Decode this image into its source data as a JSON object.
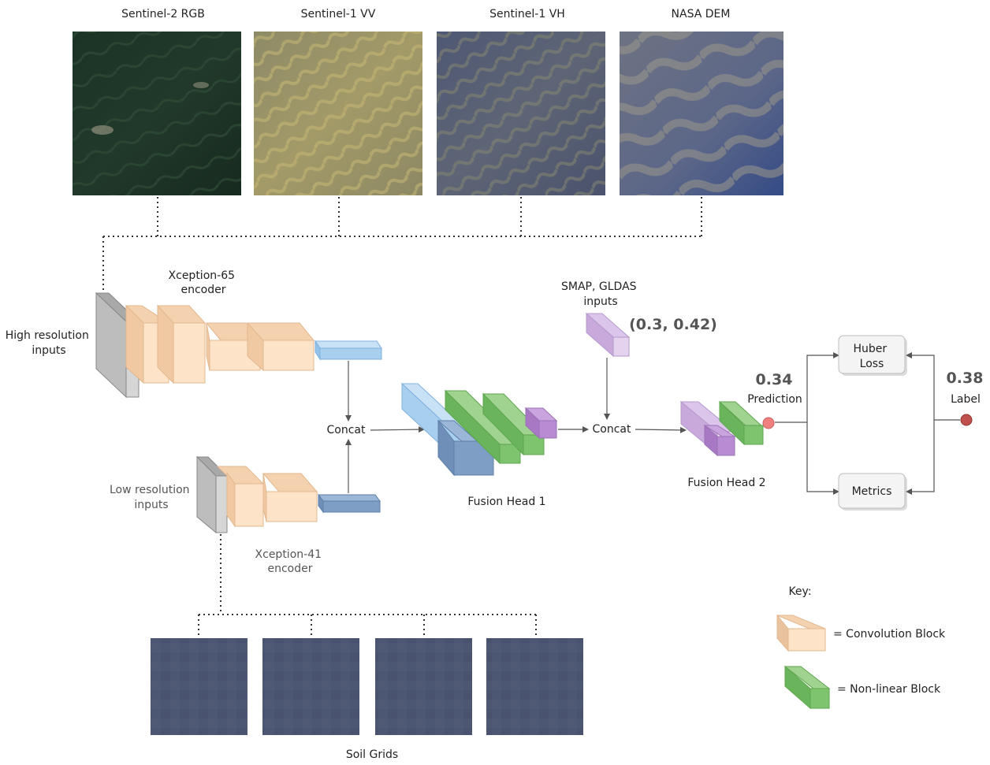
{
  "images": {
    "sentinel2_rgb": "Sentinel-2 RGB",
    "sentinel1_vv": "Sentinel-1 VV",
    "sentinel1_vh": "Sentinel-1 VH",
    "nasa_dem": "NASA DEM",
    "soil_grids": "Soil Grids"
  },
  "encoders": {
    "high_res": "Xception-65\nencoder",
    "low_res": "Xception-41\nencoder"
  },
  "inputs": {
    "high_res": "High resolution\ninputs",
    "low_res": "Low resolution\ninputs",
    "smap_gldas": "SMAP, GLDAS\ninputs",
    "smap_gldas_values": "(0.3, 0.42)"
  },
  "nodes": {
    "concat_1": "Concat",
    "concat_2": "Concat",
    "fusion_head_1": "Fusion Head 1",
    "fusion_head_2": "Fusion Head 2",
    "huber_loss": "Huber\nLoss",
    "metrics": "Metrics"
  },
  "outputs": {
    "prediction_value": "0.34",
    "prediction_label": "Prediction",
    "label_value": "0.38",
    "label_label": "Label"
  },
  "key": {
    "title": "Key:",
    "conv": "= Convolution Block",
    "nonlinear": "= Non-linear Block"
  },
  "colors": {
    "conv": "#fde3c8",
    "nonlinear": "#7ec46f",
    "purple": "#d4b5e6",
    "light_blue": "#a8cfee",
    "dark_blue": "#7f9ec5",
    "grey": "#c4c4c4",
    "prediction_dot": "#f08080",
    "label_dot": "#c0504d"
  }
}
